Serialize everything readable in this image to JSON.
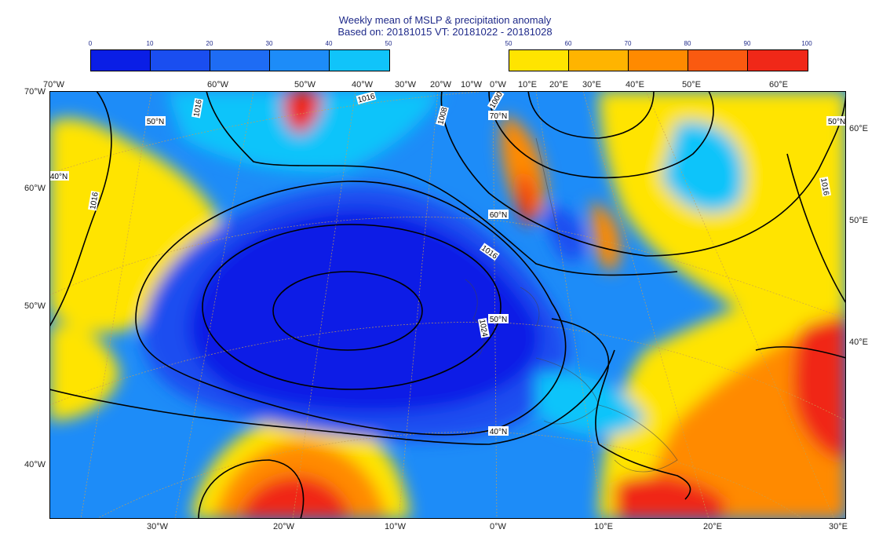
{
  "title": {
    "line1": "Weekly mean of MSLP & precipitation anomaly",
    "line2": "Based on: 20181015 VT: 20181022 - 20181028"
  },
  "colorbar_left": {
    "ticks": [
      "0",
      "10",
      "20",
      "30",
      "40",
      "50"
    ],
    "colors": [
      "#0a1ee6",
      "#1a4ef0",
      "#1e6cf4",
      "#1d8cf8",
      "#10c4fa"
    ]
  },
  "colorbar_right": {
    "ticks": [
      "50",
      "60",
      "70",
      "80",
      "90",
      "100"
    ],
    "colors": [
      "#ffe400",
      "#ffb400",
      "#ff8a00",
      "#fa5a10",
      "#f02818"
    ]
  },
  "top_labels": [
    "70°W",
    "60°W",
    "50°W",
    "40°W",
    "30°W",
    "20°W",
    "10°W",
    "0°W",
    "10°E",
    "20°E",
    "30°E",
    "40°E",
    "50°E",
    "60°E"
  ],
  "bottom_labels": [
    "30°W",
    "20°W",
    "10°W",
    "0°W",
    "10°E",
    "20°E",
    "30°E"
  ],
  "left_labels": [
    "70°N",
    "60°N",
    "50°N",
    "40°N"
  ],
  "left_labels_text": [
    "70°W",
    "60°W",
    "50°W",
    "40°W"
  ],
  "right_labels": [
    "60°E",
    "50°E",
    "40°E"
  ],
  "inner_lat_labels": [
    "70°N",
    "60°N",
    "50°N",
    "40°N",
    "50°N",
    "40°N",
    "50°N"
  ],
  "isobar_labels": [
    "1016",
    "1016",
    "1008",
    "1000",
    "1016",
    "1024",
    "1016",
    "1016"
  ],
  "map_colors": {
    "sea_blue": "#1d8cf8",
    "deep_blue": "#0a1ee6",
    "mid_blue": "#1a4ef0",
    "cyan": "#10c4fa",
    "yellow": "#ffe400",
    "orange": "#ff8a00",
    "red": "#f02818"
  }
}
